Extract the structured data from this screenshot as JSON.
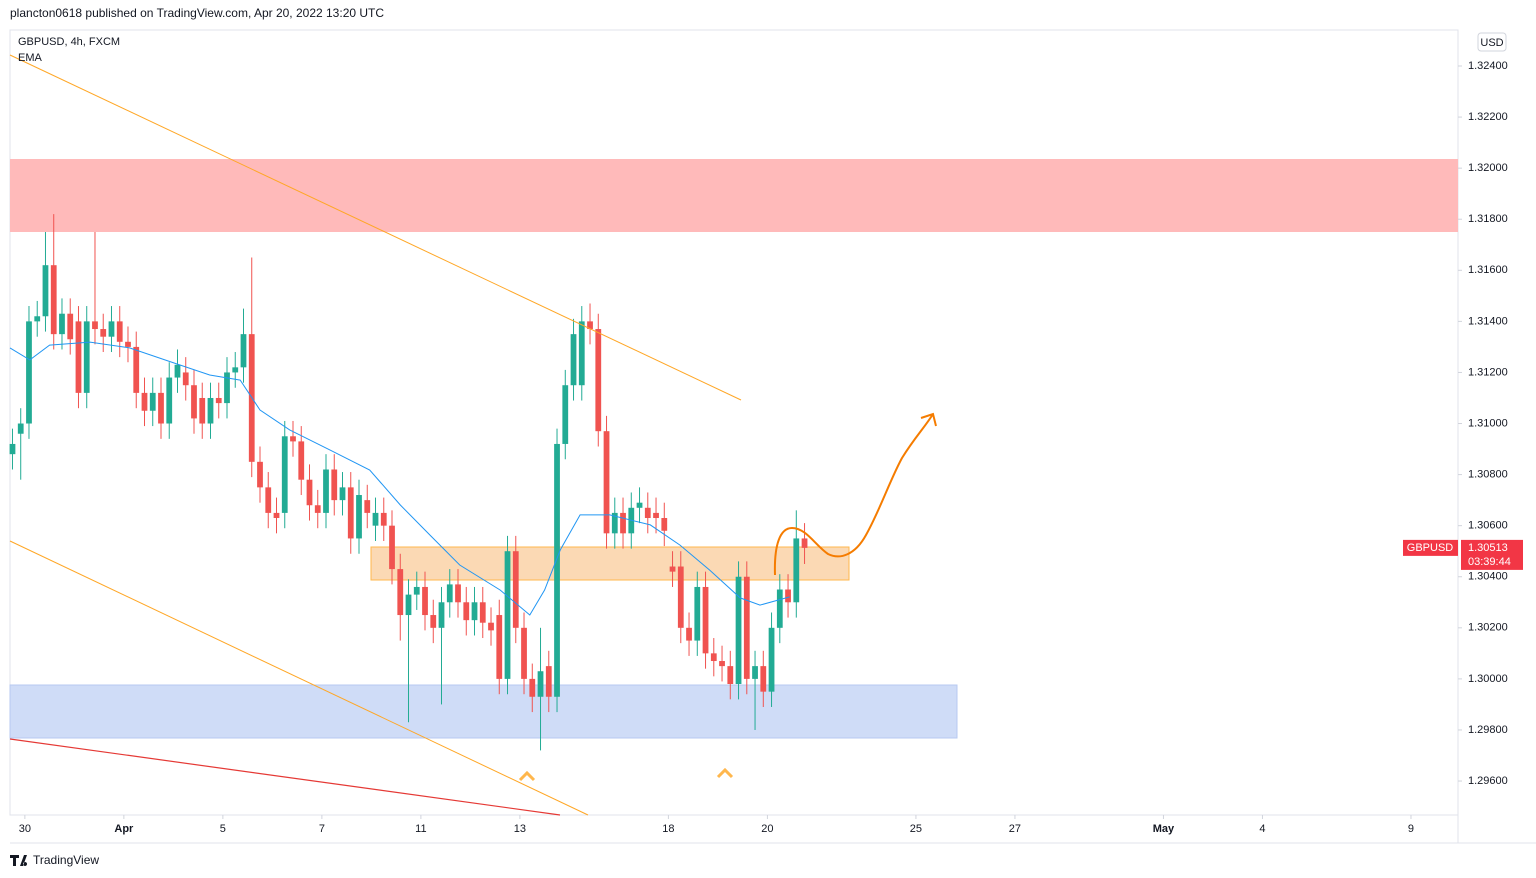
{
  "header": {
    "title": "plancton0618 published on TradingView.com, Apr 20, 2022 13:20 UTC"
  },
  "footer": {
    "brand": "TradingView"
  },
  "chart_data": {
    "type": "candlestick",
    "symbol": "GBPUSD, 4h, FXCM",
    "indicator": "EMA",
    "currency": "USD",
    "up_color": "#22ab94",
    "down_color": "#f05350",
    "open": [
      1.3088,
      1.3096,
      1.31,
      1.314,
      1.3142,
      1.3162,
      1.3135,
      1.3143,
      1.314,
      1.3112,
      1.314,
      1.3137,
      1.3134,
      1.314,
      1.3132,
      1.313,
      1.3112,
      1.3105,
      1.3112,
      1.31,
      1.3118,
      1.312,
      1.3115,
      1.311,
      1.31,
      1.311,
      1.3108,
      1.312,
      1.3122,
      1.3135,
      1.3085,
      1.3075,
      1.3065,
      1.3065,
      1.3095,
      1.3093,
      1.3078,
      1.3068,
      1.3065,
      1.3082,
      1.307,
      1.3075,
      1.3055,
      1.307,
      1.306,
      1.3065,
      1.306,
      1.3043,
      1.3025,
      1.3033,
      1.3036,
      1.3025,
      1.302,
      1.303,
      1.3037,
      1.303,
      1.3023,
      1.303,
      1.3022,
      1.3025,
      1.3,
      1.305,
      1.302,
      1.3,
      1.2993,
      1.3005,
      1.2993,
      1.3092,
      1.3115,
      1.3115,
      1.314,
      1.3137,
      1.3097,
      1.3057,
      1.3065,
      1.3057,
      1.3067,
      1.3067,
      1.3065,
      1.3063,
      1.3044,
      1.3044,
      1.302,
      1.3015,
      1.3036,
      1.301,
      1.3007,
      1.3005,
      1.2998,
      1.304,
      1.3,
      1.3005,
      1.2995,
      1.302,
      1.3035,
      1.303,
      1.3055
    ],
    "high": [
      1.3098,
      1.3106,
      1.3146,
      1.3148,
      1.3175,
      1.3182,
      1.3149,
      1.3149,
      1.3146,
      1.3146,
      1.3175,
      1.3143,
      1.3146,
      1.3146,
      1.3138,
      1.3136,
      1.3118,
      1.3118,
      1.3118,
      1.3124,
      1.3129,
      1.3126,
      1.3121,
      1.3116,
      1.3116,
      1.3116,
      1.3126,
      1.3128,
      1.3145,
      1.3165,
      1.3091,
      1.3081,
      1.3071,
      1.3101,
      1.3101,
      1.3099,
      1.3084,
      1.3074,
      1.3088,
      1.3088,
      1.3081,
      1.3081,
      1.3078,
      1.3076,
      1.3071,
      1.3071,
      1.3066,
      1.3049,
      1.3039,
      1.3042,
      1.3042,
      1.3031,
      1.3036,
      1.3043,
      1.3043,
      1.3036,
      1.3036,
      1.3036,
      1.3028,
      1.3031,
      1.3056,
      1.3056,
      1.3026,
      1.3006,
      1.302,
      1.3011,
      1.3098,
      1.3121,
      1.3141,
      1.3146,
      1.3147,
      1.3143,
      1.3103,
      1.3071,
      1.3071,
      1.3073,
      1.3075,
      1.3073,
      1.3071,
      1.3069,
      1.305,
      1.305,
      1.3026,
      1.3042,
      1.3042,
      1.3016,
      1.3013,
      1.3011,
      1.3046,
      1.3046,
      1.3011,
      1.3011,
      1.3026,
      1.3041,
      1.3041,
      1.3066,
      1.3061
    ],
    "low": [
      1.3082,
      1.3078,
      1.3094,
      1.3134,
      1.3136,
      1.3129,
      1.3129,
      1.3127,
      1.3106,
      1.3106,
      1.3131,
      1.3128,
      1.3128,
      1.3126,
      1.3124,
      1.3106,
      1.3099,
      1.3099,
      1.3094,
      1.3094,
      1.3112,
      1.3109,
      1.3096,
      1.3094,
      1.3094,
      1.3102,
      1.3102,
      1.3114,
      1.3116,
      1.3079,
      1.3069,
      1.3059,
      1.3057,
      1.3059,
      1.3087,
      1.3072,
      1.3062,
      1.3059,
      1.3059,
      1.3064,
      1.3064,
      1.3049,
      1.3049,
      1.3059,
      1.3054,
      1.3054,
      1.3037,
      1.3015,
      1.2983,
      1.3027,
      1.3019,
      1.3014,
      1.299,
      1.3024,
      1.3024,
      1.3017,
      1.3017,
      1.3016,
      1.3013,
      1.2994,
      1.2994,
      1.3014,
      1.2994,
      1.2987,
      1.2972,
      1.2987,
      1.2987,
      1.3086,
      1.3109,
      1.3109,
      1.3131,
      1.3091,
      1.3051,
      1.3051,
      1.3051,
      1.3051,
      1.3061,
      1.3057,
      1.3057,
      1.3052,
      1.3036,
      1.3014,
      1.3009,
      1.3009,
      1.3004,
      1.3001,
      1.2999,
      1.2992,
      1.2992,
      1.2994,
      1.298,
      1.2989,
      1.2989,
      1.3014,
      1.3024,
      1.3024,
      1.3045
    ],
    "close": [
      1.3092,
      1.31,
      1.314,
      1.3142,
      1.3162,
      1.3135,
      1.3143,
      1.3133,
      1.3112,
      1.314,
      1.3137,
      1.3134,
      1.314,
      1.3132,
      1.313,
      1.3112,
      1.3105,
      1.3112,
      1.31,
      1.3118,
      1.3123,
      1.3115,
      1.3102,
      1.31,
      1.311,
      1.3108,
      1.312,
      1.3122,
      1.3135,
      1.3085,
      1.3075,
      1.3065,
      1.3063,
      1.3095,
      1.3093,
      1.3078,
      1.3068,
      1.3065,
      1.3082,
      1.307,
      1.3075,
      1.3055,
      1.3072,
      1.3065,
      1.3065,
      1.306,
      1.3043,
      1.3025,
      1.3033,
      1.3036,
      1.3025,
      1.302,
      1.303,
      1.3037,
      1.303,
      1.3023,
      1.303,
      1.3022,
      1.3019,
      1.3,
      1.305,
      1.302,
      1.3,
      1.2993,
      1.3003,
      1.2993,
      1.3092,
      1.3115,
      1.3135,
      1.314,
      1.3137,
      1.3097,
      1.3057,
      1.3065,
      1.3057,
      1.3067,
      1.3069,
      1.3063,
      1.3063,
      1.3058,
      1.3042,
      1.302,
      1.3015,
      1.3036,
      1.301,
      1.3007,
      1.3005,
      1.2998,
      1.304,
      1.3,
      1.3005,
      1.2995,
      1.302,
      1.3035,
      1.303,
      1.3055,
      1.30513
    ],
    "ema": {
      "color": "#2196f3",
      "x": [
        -0.3,
        2.1,
        4.5,
        9.4,
        14.2,
        20.3,
        23.9,
        27.6,
        30.0,
        33.6,
        38.5,
        43.3,
        47.0,
        50.6,
        54.2,
        59.1,
        62.7,
        64.5,
        66.4,
        68.8,
        72.4,
        77.3,
        80.9,
        84.5,
        88.2,
        90.6,
        94.2
      ],
      "values": [
        1.31296,
        1.31249,
        1.31307,
        1.31319,
        1.31296,
        1.31229,
        1.3119,
        1.3117,
        1.31053,
        1.30975,
        1.30896,
        1.30818,
        1.30681,
        1.30563,
        1.30446,
        1.30348,
        1.3025,
        1.30348,
        1.30505,
        1.30642,
        1.30642,
        1.30603,
        1.30524,
        1.30426,
        1.30317,
        1.30289,
        1.30321
      ]
    },
    "price_label": {
      "name": "GBPUSD",
      "value": 1.30513,
      "countdown": "03:39:44",
      "color": "#f23645"
    },
    "xlim": [
      -0.3,
      175.2
    ],
    "xticks": [
      {
        "value": 1.5,
        "label": "30"
      },
      {
        "value": 13.5,
        "label": "Apr"
      },
      {
        "value": 25.5,
        "label": "5"
      },
      {
        "value": 37.5,
        "label": "7"
      },
      {
        "value": 49.5,
        "label": "11"
      },
      {
        "value": 61.5,
        "label": "13"
      },
      {
        "value": 79.5,
        "label": "18"
      },
      {
        "value": 91.5,
        "label": "20"
      },
      {
        "value": 109.5,
        "label": "25"
      },
      {
        "value": 121.5,
        "label": "27"
      },
      {
        "value": 139.5,
        "label": "May"
      },
      {
        "value": 151.5,
        "label": "4"
      },
      {
        "value": 169.5,
        "label": "9"
      }
    ],
    "ylim": [
      1.29467,
      1.32541
    ],
    "yticks": [
      {
        "value": 1.324,
        "label": "1.32400"
      },
      {
        "value": 1.322,
        "label": "1.32200"
      },
      {
        "value": 1.32,
        "label": "1.32000"
      },
      {
        "value": 1.318,
        "label": "1.31800"
      },
      {
        "value": 1.316,
        "label": "1.31600"
      },
      {
        "value": 1.314,
        "label": "1.31400"
      },
      {
        "value": 1.312,
        "label": "1.31200"
      },
      {
        "value": 1.31,
        "label": "1.31000"
      },
      {
        "value": 1.308,
        "label": "1.30800"
      },
      {
        "value": 1.306,
        "label": "1.30600"
      },
      {
        "value": 1.304,
        "label": "1.30400"
      },
      {
        "value": 1.302,
        "label": "1.30200"
      },
      {
        "value": 1.3,
        "label": "1.30000"
      },
      {
        "value": 1.298,
        "label": "1.29800"
      },
      {
        "value": 1.296,
        "label": "1.29600"
      }
    ]
  }
}
